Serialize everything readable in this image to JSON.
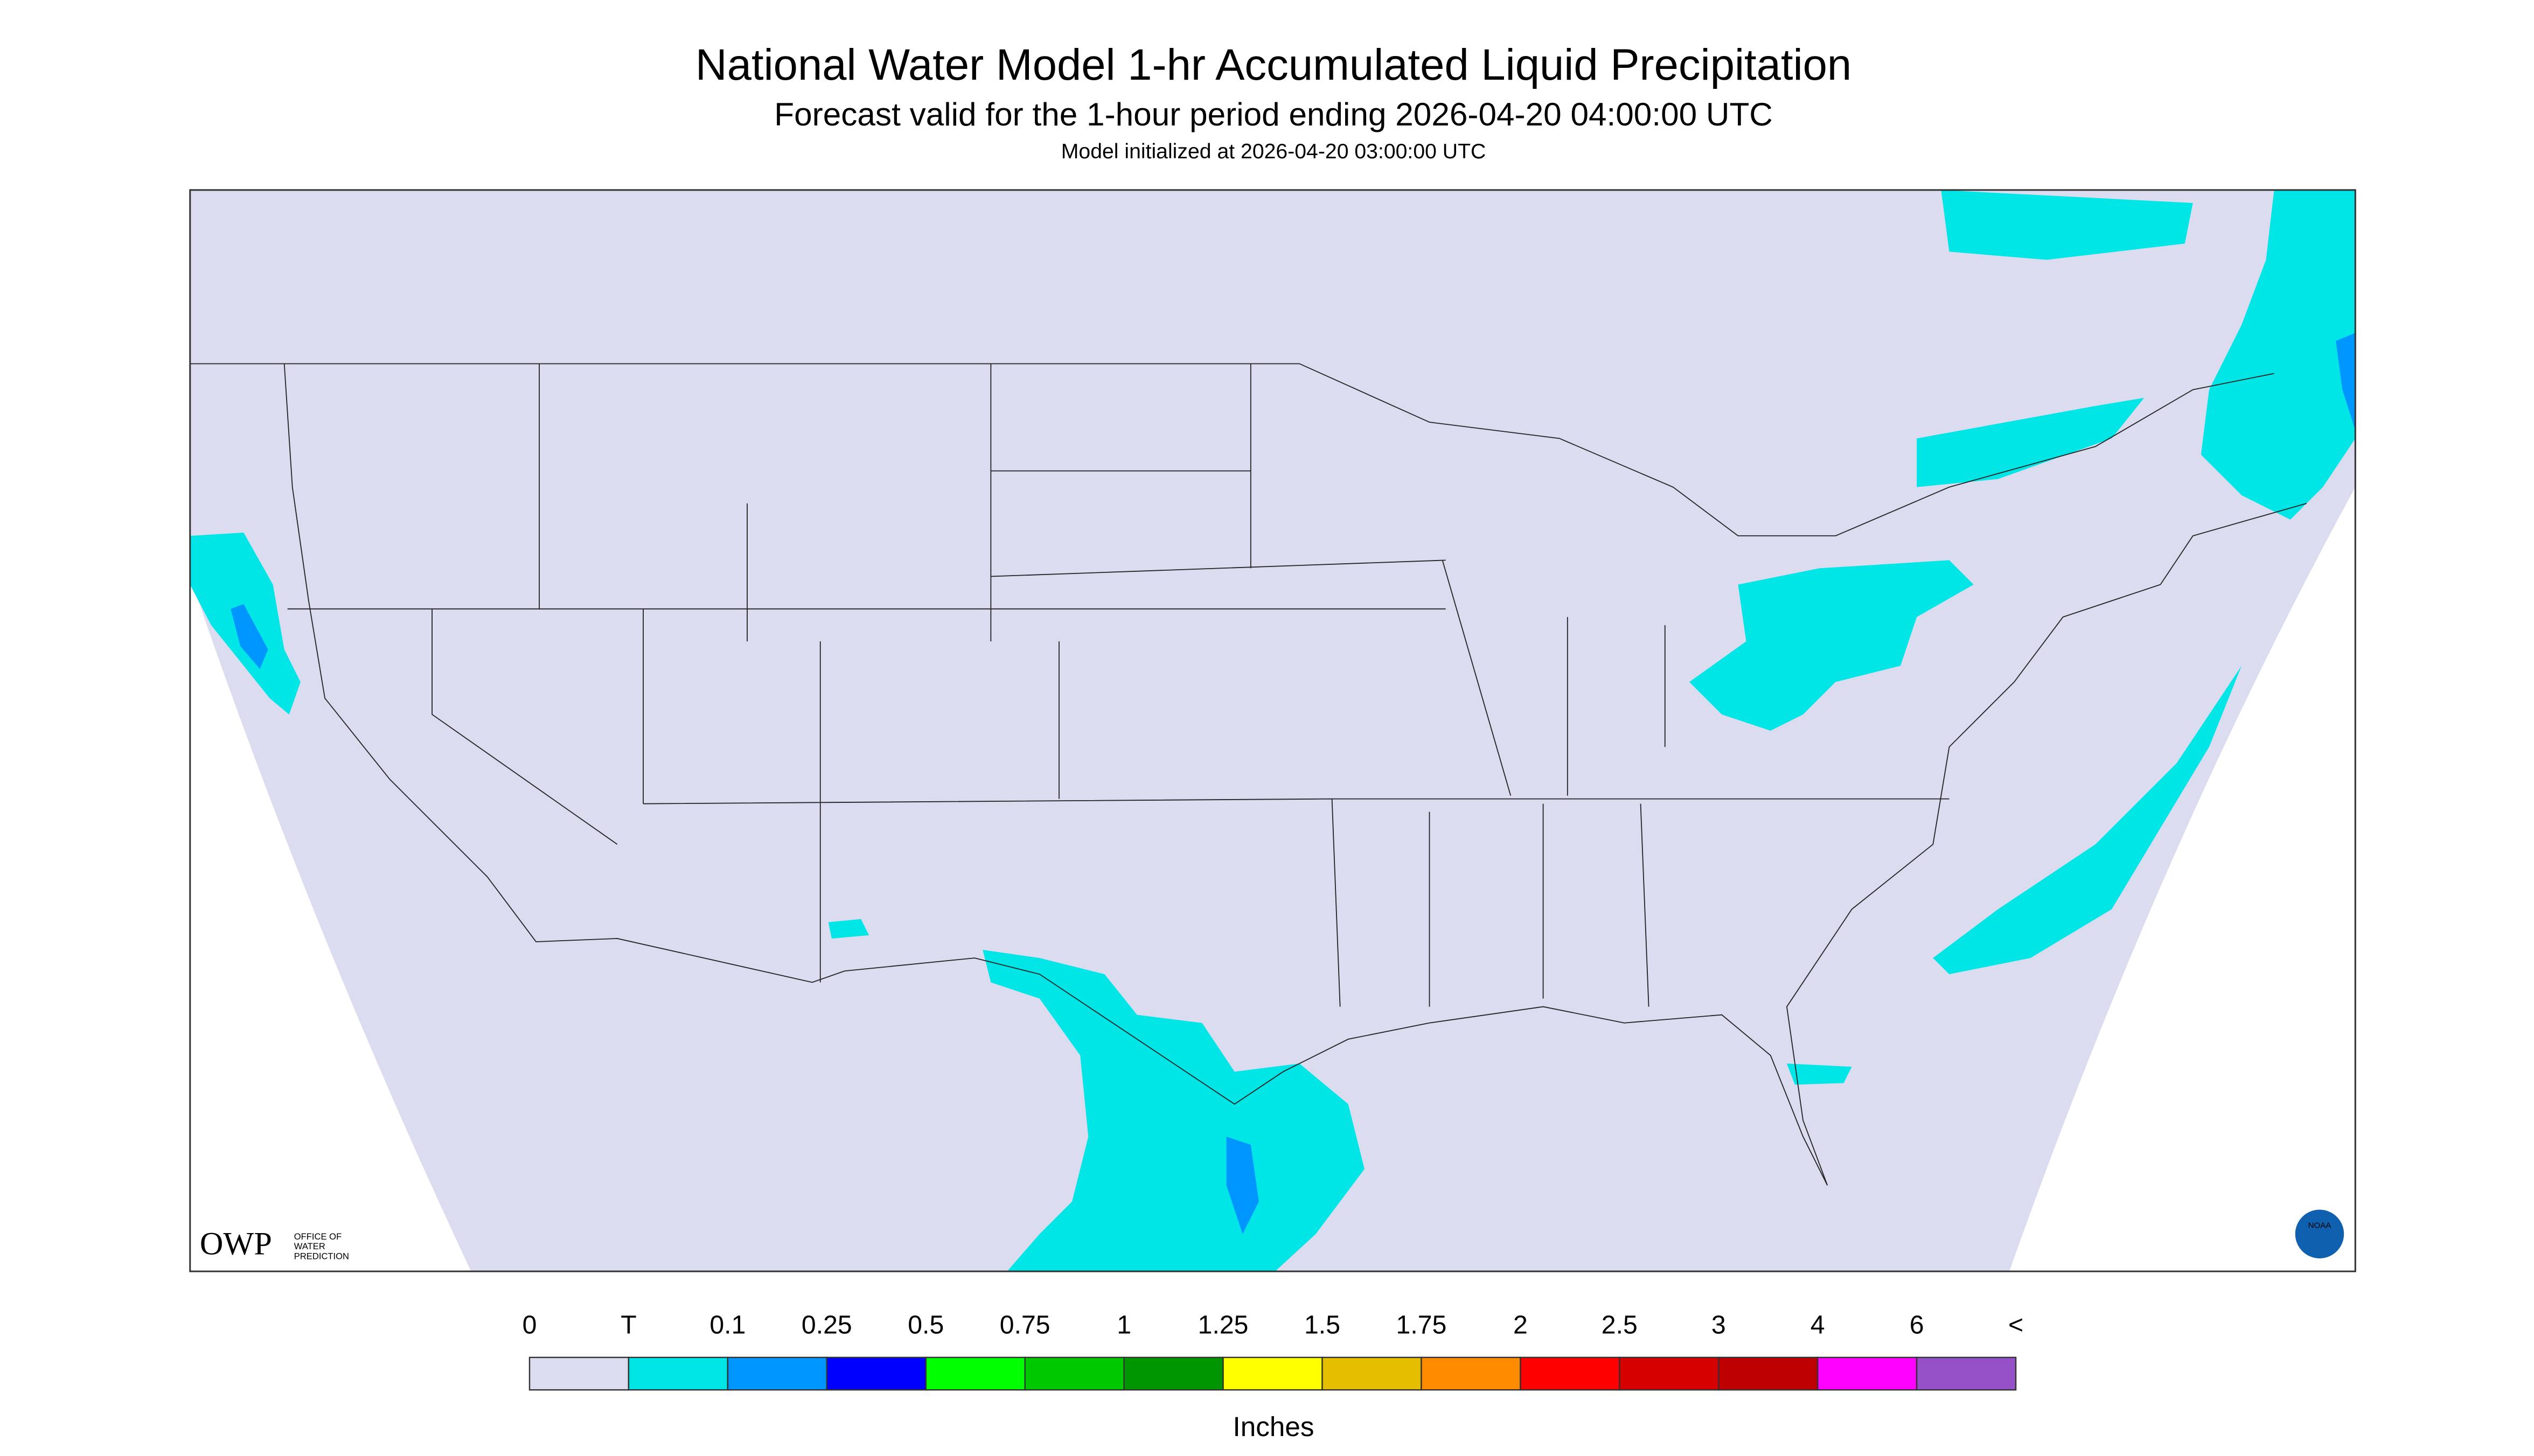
{
  "header": {
    "title": "National Water Model 1-hr Accumulated Liquid Precipitation",
    "subtitle": "Forecast valid for the 1-hour period ending 2026-04-20 04:00:00 UTC",
    "init_note": "Model initialized at 2026-04-20 03:00:00 UTC"
  },
  "logos": {
    "owp": "OWP",
    "owp_name": [
      "OFFICE OF",
      "WATER",
      "PREDICTION"
    ],
    "noaa": "NOAA"
  },
  "legend": {
    "labels": [
      "0",
      "T",
      "0.1",
      "0.25",
      "0.5",
      "0.75",
      "1",
      "1.25",
      "1.5",
      "1.75",
      "2",
      "2.5",
      "3",
      "4",
      "6",
      "<"
    ],
    "colors": [
      "#dcdcf0",
      "#00e6e6",
      "#0096ff",
      "#0000ff",
      "#00ff00",
      "#00c800",
      "#009600",
      "#ffff00",
      "#e6be00",
      "#ff8c00",
      "#ff0000",
      "#d70000",
      "#be0000",
      "#ff00ff",
      "#9650c8"
    ],
    "unit": "Inches"
  }
}
